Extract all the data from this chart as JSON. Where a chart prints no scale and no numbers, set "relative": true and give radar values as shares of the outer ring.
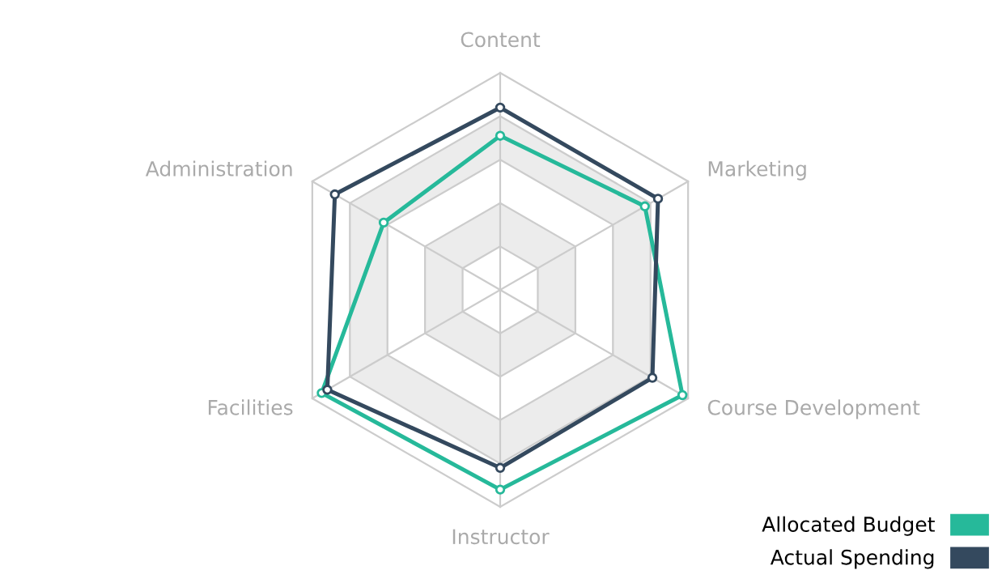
{
  "chart_data": {
    "type": "radar",
    "relative": true,
    "categories": [
      "Content",
      "Marketing",
      "Course Development",
      "Instructor",
      "Facilities",
      "Administration"
    ],
    "series": [
      {
        "name": "Allocated Budget",
        "color": "#26b99a",
        "values": [
          0.71,
          0.77,
          0.97,
          0.92,
          0.95,
          0.62
        ]
      },
      {
        "name": "Actual Spending",
        "color": "#34495e",
        "values": [
          0.84,
          0.84,
          0.81,
          0.82,
          0.92,
          0.88
        ]
      }
    ],
    "legend": "bottom right",
    "marker": "circle",
    "line_style": "solid"
  }
}
